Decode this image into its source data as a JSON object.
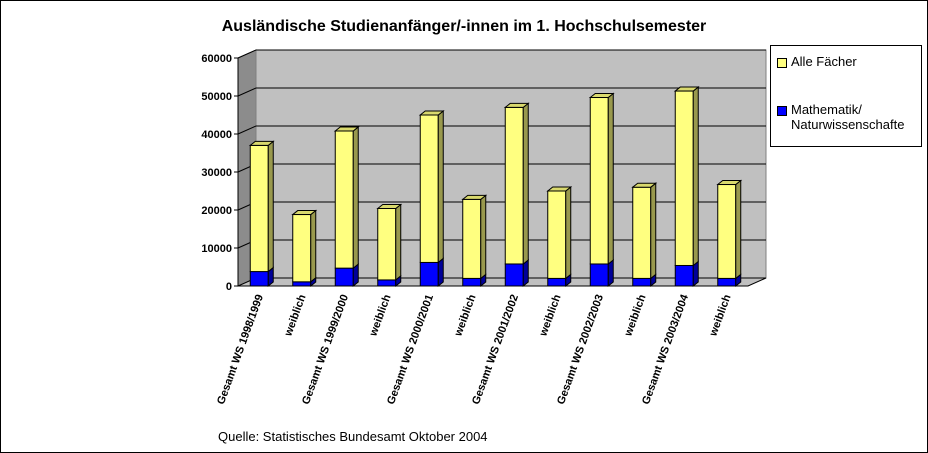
{
  "chart_data": {
    "type": "bar",
    "stacked": true,
    "three_d": true,
    "title": "Ausländische Studienanfänger/-innen im 1. Hochschulsemester",
    "categories": [
      "Gesamt WS 1998/1999",
      "weiblich",
      "Gesamt WS 1999/2000",
      "weiblich",
      "Gesamt WS 2000/2001",
      "weiblich",
      "Gesamt WS 2001/2002",
      "weiblich",
      "Gesamt WS 2002/2003",
      "weiblich",
      "Gesamt WS 2003/2004",
      "weiblich"
    ],
    "series": [
      {
        "name": "Alle Fächer",
        "color": "#FFFF80",
        "values": [
          37000,
          18800,
          40800,
          20400,
          45000,
          22800,
          47000,
          25000,
          49600,
          26000,
          51300,
          26700
        ]
      },
      {
        "name": "Mathematik/ Naturwissenschafte",
        "color": "#0000FF",
        "values": [
          3800,
          1100,
          4700,
          1600,
          6200,
          2000,
          5800,
          2000,
          5800,
          2000,
          5400,
          2000
        ]
      }
    ],
    "yticks": [
      "0",
      "10000",
      "20000",
      "30000",
      "40000",
      "50000",
      "60000"
    ],
    "ylim": [
      0,
      60000
    ],
    "grid": true,
    "legend_position": "right",
    "source_note": "Quelle: Statistisches Bundesamt Oktober 2004"
  }
}
